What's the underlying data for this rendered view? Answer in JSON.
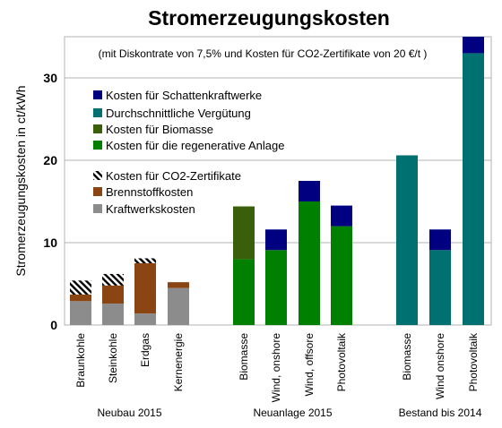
{
  "chart_data": {
    "type": "bar",
    "stacked": true,
    "title": "Stromerzeugungskosten",
    "subtitle": "(mit Diskontrate von 7,5% und Kosten für CO2-Zertifikate von 20 €/t )",
    "ylabel": "Stromerzeugungskosten in ct/kWh",
    "ylim": [
      0,
      35
    ],
    "yticks": [
      0,
      10,
      20,
      30
    ],
    "grid": true,
    "legend_position": "inside-left",
    "groups": [
      {
        "label": "Neubau 2015",
        "categories": [
          "Braunkohle",
          "Steinkohle",
          "Erdgas",
          "Kernenergie"
        ]
      },
      {
        "label": "Neuanlage 2015",
        "categories": [
          "Biomasse",
          "Wind, onshore",
          "Wind, offsore",
          "Photovoltaik"
        ]
      },
      {
        "label": "Bestand bis 2014",
        "categories": [
          "Biomasse",
          "Wind onshore",
          "Photovoltaik"
        ]
      }
    ],
    "categories": [
      "Braunkohle",
      "Steinkohle",
      "Erdgas",
      "Kernenergie",
      "Biomasse",
      "Wind, onshore",
      "Wind, offsore",
      "Photovoltaik",
      "Biomasse",
      "Wind onshore",
      "Photovoltaik"
    ],
    "series": [
      {
        "name": "Kraftwerkskosten",
        "color": "#8c8c8c",
        "values": [
          2.9,
          2.6,
          1.4,
          4.5,
          0,
          0,
          0,
          0,
          0,
          0,
          0
        ]
      },
      {
        "name": "Brennstoffkosten",
        "color": "#8b4513",
        "values": [
          0.8,
          2.2,
          6.1,
          0.7,
          0,
          0,
          0,
          0,
          0,
          0,
          0
        ]
      },
      {
        "name": "Kosten für CO2-Zertifikate",
        "color": "#000000",
        "pattern": "hatch",
        "values": [
          1.7,
          1.4,
          0.6,
          0,
          0,
          0,
          0,
          0,
          0,
          0,
          0
        ]
      },
      {
        "name": "Kosten für die regenerative Anlage",
        "color": "#008000",
        "values": [
          0,
          0,
          0,
          0,
          8.0,
          9.1,
          15.0,
          12.0,
          0,
          0,
          0
        ]
      },
      {
        "name": "Kosten für Biomasse",
        "color": "#3a5f0b",
        "values": [
          0,
          0,
          0,
          0,
          6.4,
          0,
          0,
          0,
          0,
          0,
          0
        ]
      },
      {
        "name": "Durchschnittliche Vergütung",
        "color": "#007070",
        "values": [
          0,
          0,
          0,
          0,
          0,
          0,
          0,
          0,
          20.6,
          9.1,
          33.0
        ]
      },
      {
        "name": "Kosten für Schattenkraftwerke",
        "color": "#000080",
        "values": [
          0,
          0,
          0,
          0,
          0,
          2.5,
          2.5,
          2.5,
          0,
          2.5,
          2.0
        ]
      }
    ],
    "legend_order": [
      "Kosten für Schattenkraftwerke",
      "Durchschnittliche Vergütung",
      "Kosten für Biomasse",
      "Kosten für die regenerative Anlage",
      "Kosten für CO2-Zertifikate",
      "Brennstoffkosten",
      "Kraftwerkskosten"
    ]
  }
}
